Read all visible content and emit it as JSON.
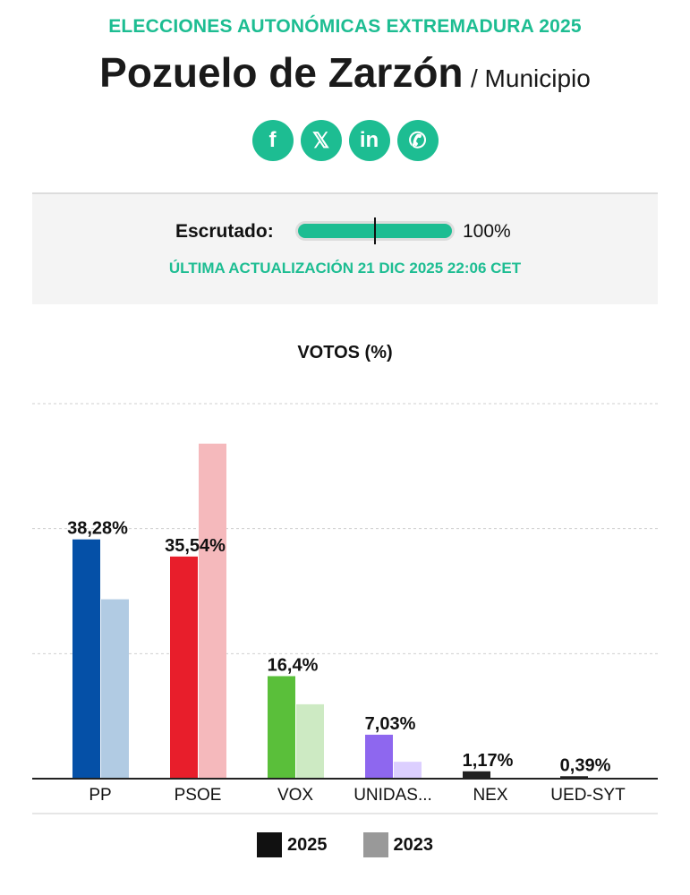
{
  "header": {
    "kicker": "ELECCIONES AUTONÓMICAS EXTREMADURA 2025",
    "title": "Pozuelo de Zarzón",
    "subtitle": "/ Municipio"
  },
  "social": [
    {
      "icon": "facebook-icon",
      "glyph": "f"
    },
    {
      "icon": "x-icon",
      "glyph": "𝕏"
    },
    {
      "icon": "linkedin-icon",
      "glyph": "in"
    },
    {
      "icon": "whatsapp-icon",
      "glyph": "✆"
    }
  ],
  "scrutiny": {
    "label": "Escrutado:",
    "percent_text": "100%",
    "progress": 100,
    "updated": "ÚLTIMA ACTUALIZACIÓN 21 DIC 2025 22:06 CET",
    "accent": "#1dbd92"
  },
  "chart_data": {
    "type": "bar",
    "title": "VOTOS (%)",
    "categories": [
      "PP",
      "PSOE",
      "VOX",
      "UNIDAS...",
      "NEX",
      "UED-SYT"
    ],
    "series": [
      {
        "name": "2025",
        "values": [
          38.28,
          35.54,
          16.4,
          7.03,
          1.17,
          0.39
        ],
        "labels": [
          "38,28%",
          "35,54%",
          "16,4%",
          "7,03%",
          "1,17%",
          "0,39%"
        ],
        "colors": [
          "#0550a7",
          "#e81e2b",
          "#5abf3a",
          "#8e67ef",
          "#222222",
          "#222222"
        ]
      },
      {
        "name": "2023",
        "values": [
          28.7,
          53.6,
          11.9,
          2.7,
          0,
          0
        ],
        "colors": [
          "#b1cbe3",
          "#f5b9bc",
          "#cdeac3",
          "#dccfff",
          "#cccccc",
          "#cccccc"
        ]
      }
    ],
    "ylim": [
      0,
      60
    ],
    "gridlines": [
      20,
      40,
      60
    ],
    "grid": true,
    "legend": [
      {
        "label": "2025",
        "color": "#111111"
      },
      {
        "label": "2023",
        "color": "#999999"
      }
    ],
    "legend_position": "bottom"
  }
}
